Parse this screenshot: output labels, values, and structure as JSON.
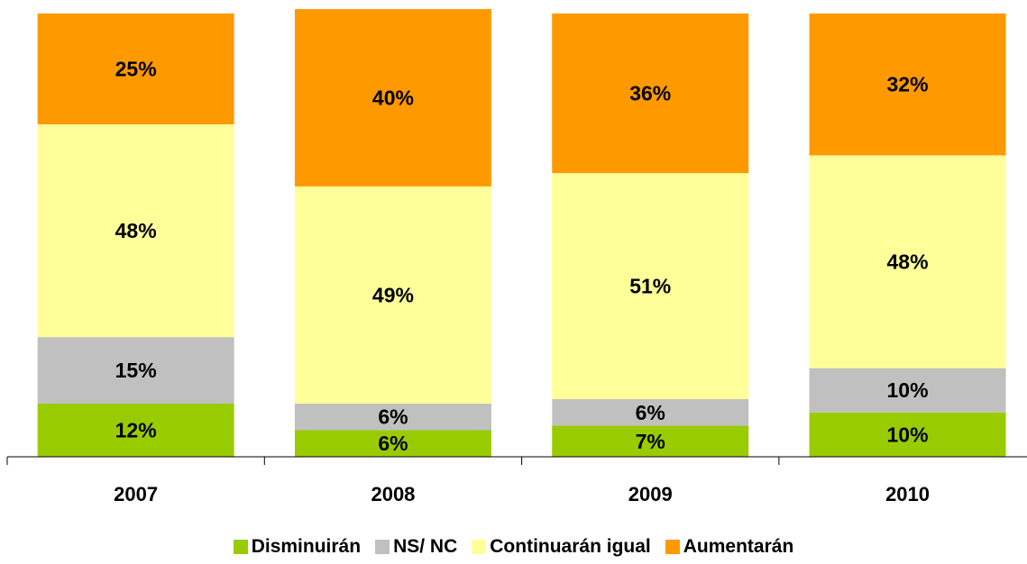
{
  "chart_data": {
    "type": "bar",
    "stacked": true,
    "categories": [
      "2007",
      "2008",
      "2009",
      "2010"
    ],
    "series": [
      {
        "name": "Disminuirán",
        "color": "#99cc00",
        "values": [
          12,
          6,
          7,
          10
        ],
        "labels": [
          "12%",
          "6%",
          "7%",
          "10%"
        ]
      },
      {
        "name": "NS/ NC",
        "color": "#c0c0c0",
        "values": [
          15,
          6,
          6,
          10
        ],
        "labels": [
          "15%",
          "6%",
          "6%",
          "10%"
        ]
      },
      {
        "name": "Continuarán igual",
        "color": "#ffff99",
        "values": [
          48,
          49,
          51,
          48
        ],
        "labels": [
          "48%",
          "49%",
          "51%",
          "48%"
        ]
      },
      {
        "name": "Aumentarán",
        "color": "#ff9900",
        "values": [
          25,
          40,
          36,
          32
        ],
        "labels": [
          "25%",
          "40%",
          "36%",
          "32%"
        ]
      }
    ],
    "ylim": [
      0,
      100
    ],
    "grid": false,
    "legend_position": "bottom"
  }
}
